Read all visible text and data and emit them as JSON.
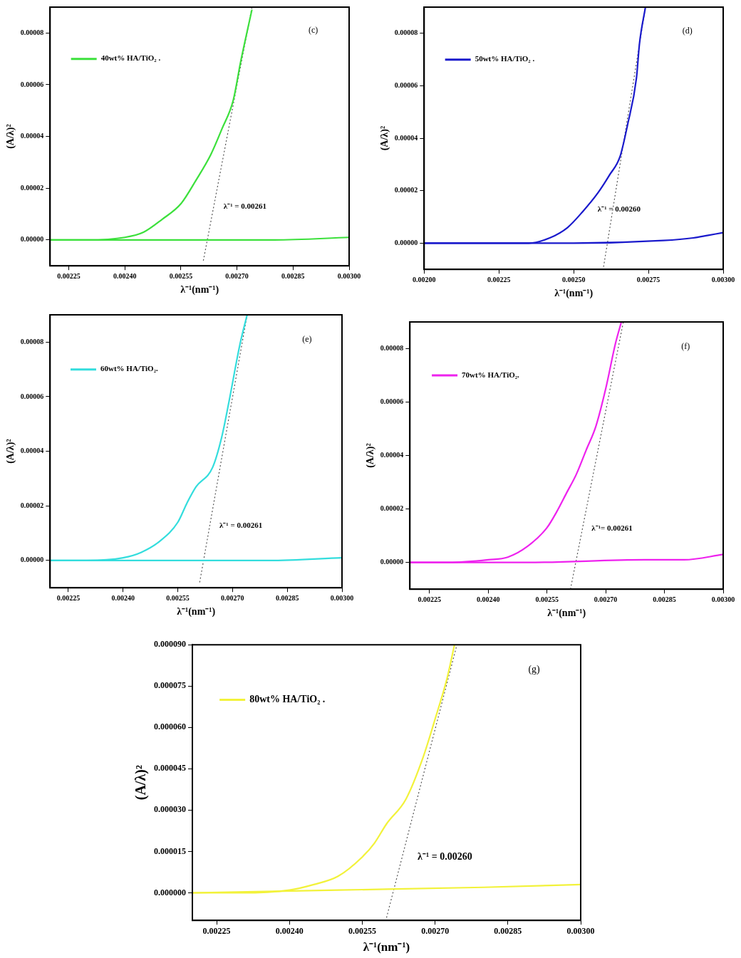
{
  "chart_data": [
    {
      "type": "line",
      "xlabel": "λ⁻¹(nm⁻¹)",
      "ylabel": "(A/λ)²",
      "legend": "top left",
      "grid": false,
      "marker": "none",
      "xlim": [
        0.0022,
        0.003
      ],
      "xticks": [
        {
          "value": 0.00225,
          "label": "0.00225"
        },
        {
          "value": 0.0024,
          "label": "0.00240"
        },
        {
          "value": 0.00255,
          "label": "0.00255"
        },
        {
          "value": 0.0027,
          "label": "0.00270"
        },
        {
          "value": 0.00285,
          "label": "0.00285"
        },
        {
          "value": 0.003,
          "label": "0.00300"
        }
      ],
      "ylim": [
        -1e-05,
        9e-05
      ],
      "yticks": [
        {
          "value": 0,
          "label": "0.00000"
        },
        {
          "value": 2e-05,
          "label": "0.00002"
        },
        {
          "value": 4e-05,
          "label": "0.00004"
        },
        {
          "value": 6e-05,
          "label": "0.00006"
        },
        {
          "value": 8e-05,
          "label": "0.00008"
        }
      ],
      "series": [
        {
          "name": "40wt% HA/TiO₂ .",
          "color": "#3ce03c",
          "x": [
            0.0022,
            0.0023,
            0.0024,
            0.00245,
            0.0025,
            0.00255,
            0.00259,
            0.00263,
            0.00266,
            0.00269,
            0.00271,
            0.00274
          ],
          "values": [
            0,
            0,
            1e-06,
            3e-06,
            8e-06,
            1.4e-05,
            2.3e-05,
            3.3e-05,
            4.3e-05,
            5.4e-05,
            6.9e-05,
            8.9e-05
          ]
        },
        {
          "color": "#3ce03c",
          "x": [
            0.0022,
            0.0025,
            0.0028,
            0.003
          ],
          "values": [
            0,
            0,
            0,
            1e-06
          ]
        },
        {
          "type": "line",
          "color": "#555555",
          "line_style": "dotted",
          "x": [
            0.00261,
            0.00274
          ],
          "values": [
            -8e-06,
            9e-05
          ]
        }
      ],
      "annotations": [
        "(c)",
        "λ⁻¹ = 0.00261"
      ]
    },
    {
      "type": "line",
      "xlabel": "λ⁻¹(nm⁻¹)",
      "ylabel": "(A/λ)²",
      "legend": "top left",
      "grid": false,
      "marker": "none",
      "xlim": [
        0.002,
        0.003
      ],
      "xticks": [
        {
          "value": 0.002,
          "label": "0.00200"
        },
        {
          "value": 0.00225,
          "label": "0.00225"
        },
        {
          "value": 0.0025,
          "label": "0.00250"
        },
        {
          "value": 0.00275,
          "label": "0.00275"
        },
        {
          "value": 0.003,
          "label": "0.00300"
        }
      ],
      "ylim": [
        -1e-05,
        9e-05
      ],
      "yticks": [
        {
          "value": 0,
          "label": "0.00000"
        },
        {
          "value": 2e-05,
          "label": "0.00002"
        },
        {
          "value": 4e-05,
          "label": "0.00004"
        },
        {
          "value": 6e-05,
          "label": "0.00006"
        },
        {
          "value": 8e-05,
          "label": "0.00008"
        }
      ],
      "series": [
        {
          "name": "50wt% HA/TiO₂ .",
          "color": "#1a1acc",
          "x": [
            0.002,
            0.0023,
            0.00235,
            0.00242,
            0.00248,
            0.00253,
            0.00258,
            0.00262,
            0.002655,
            0.00268,
            0.00271,
            0.00272,
            0.00274
          ],
          "values": [
            0,
            0,
            0,
            2e-06,
            6e-06,
            1.2e-05,
            1.9e-05,
            2.6e-05,
            3.3e-05,
            4.5e-05,
            6.3e-05,
            7.6e-05,
            9e-05
          ]
        },
        {
          "color": "#1a1acc",
          "x": [
            0.002,
            0.0025,
            0.0028,
            0.0029,
            0.00295,
            0.003
          ],
          "values": [
            0,
            0,
            1e-06,
            2e-06,
            3e-06,
            4e-06
          ]
        },
        {
          "type": "line",
          "color": "#555555",
          "line_style": "dotted",
          "x": [
            0.0026,
            0.00274
          ],
          "values": [
            -9e-06,
            9e-05
          ]
        }
      ],
      "annotations": [
        "(d)",
        "λ⁻¹ = 0.00260"
      ]
    },
    {
      "type": "line",
      "xlabel": "λ⁻¹(nm⁻¹)",
      "ylabel": "(A/λ)²",
      "legend": "top left",
      "grid": false,
      "marker": "none",
      "xlim": [
        0.0022,
        0.003
      ],
      "xticks": [
        {
          "value": 0.00225,
          "label": "0.00225"
        },
        {
          "value": 0.0024,
          "label": "0.00240"
        },
        {
          "value": 0.00255,
          "label": "0.00255"
        },
        {
          "value": 0.0027,
          "label": "0.00270"
        },
        {
          "value": 0.00285,
          "label": "0.00285"
        },
        {
          "value": 0.003,
          "label": "0.00300"
        }
      ],
      "ylim": [
        -1e-05,
        9e-05
      ],
      "yticks": [
        {
          "value": 0,
          "label": "0.00000"
        },
        {
          "value": 2e-05,
          "label": "0.00002"
        },
        {
          "value": 4e-05,
          "label": "0.00004"
        },
        {
          "value": 6e-05,
          "label": "0.00006"
        },
        {
          "value": 8e-05,
          "label": "0.00008"
        }
      ],
      "series": [
        {
          "name": "60wt% HA/TiO₂.",
          "color": "#33dddd",
          "x": [
            0.0022,
            0.0023,
            0.0024,
            0.00245,
            0.0025,
            0.00255,
            0.002575,
            0.0026,
            0.002645,
            0.00267,
            0.00269,
            0.00272,
            0.00274
          ],
          "values": [
            0,
            0,
            1e-06,
            3e-06,
            7e-06,
            1.4e-05,
            2.1e-05,
            2.7e-05,
            3.4e-05,
            4.5e-05,
            5.8e-05,
            7.9e-05,
            9e-05
          ]
        },
        {
          "color": "#33dddd",
          "x": [
            0.0022,
            0.0025,
            0.0028,
            0.003
          ],
          "values": [
            0,
            0,
            0,
            1e-06
          ]
        },
        {
          "type": "line",
          "color": "#555555",
          "line_style": "dotted",
          "x": [
            0.00261,
            0.00274
          ],
          "values": [
            -8e-06,
            9e-05
          ]
        }
      ],
      "annotations": [
        "(e)",
        "λ⁻¹ = 0.00261"
      ]
    },
    {
      "type": "line",
      "xlabel": "λ⁻¹(nm⁻¹)",
      "ylabel": "(A/λ)²",
      "legend": "top left",
      "grid": false,
      "marker": "none",
      "xlim": [
        0.0022,
        0.003
      ],
      "xticks": [
        {
          "value": 0.00225,
          "label": "0.00225"
        },
        {
          "value": 0.0024,
          "label": "0.00240"
        },
        {
          "value": 0.00255,
          "label": "0.00255"
        },
        {
          "value": 0.0027,
          "label": "0.00270"
        },
        {
          "value": 0.00285,
          "label": "0.00285"
        },
        {
          "value": 0.003,
          "label": "0.00300"
        }
      ],
      "ylim": [
        -1e-05,
        9e-05
      ],
      "yticks": [
        {
          "value": 0,
          "label": "0.00000"
        },
        {
          "value": 2e-05,
          "label": "0.00002"
        },
        {
          "value": 4e-05,
          "label": "0.00004"
        },
        {
          "value": 6e-05,
          "label": "0.00006"
        },
        {
          "value": 8e-05,
          "label": "0.00008"
        }
      ],
      "series": [
        {
          "name": "70wt% HA/TiO₂.",
          "color": "#ee22ee",
          "x": [
            0.0022,
            0.0023,
            0.0024,
            0.00245,
            0.0025,
            0.00255,
            0.002575,
            0.0026,
            0.002625,
            0.00265,
            0.002675,
            0.0027,
            0.002725,
            0.00274
          ],
          "values": [
            0,
            0,
            1e-06,
            2e-06,
            6e-06,
            1.3e-05,
            1.9e-05,
            2.6e-05,
            3.3e-05,
            4.2e-05,
            5.1e-05,
            6.5e-05,
            8.2e-05,
            9e-05
          ]
        },
        {
          "color": "#ee22ee",
          "x": [
            0.0022,
            0.0025,
            0.0028,
            0.0029,
            0.003
          ],
          "values": [
            0,
            0,
            1e-06,
            1e-06,
            3e-06
          ]
        },
        {
          "type": "line",
          "color": "#555555",
          "line_style": "dotted",
          "x": [
            0.00261,
            0.002745
          ],
          "values": [
            -1e-05,
            9e-05
          ]
        }
      ],
      "annotations": [
        "(f)",
        "λ⁻¹= 0.00261"
      ]
    },
    {
      "type": "line",
      "xlabel": "λ⁻¹(nm⁻¹)",
      "ylabel": "(A/λ)²",
      "legend": "top left",
      "grid": false,
      "marker": "none",
      "xlim": [
        0.0022,
        0.003
      ],
      "xticks": [
        {
          "value": 0.00225,
          "label": "0.00225"
        },
        {
          "value": 0.0024,
          "label": "0.00240"
        },
        {
          "value": 0.00255,
          "label": "0.00255"
        },
        {
          "value": 0.0027,
          "label": "0.00270"
        },
        {
          "value": 0.00285,
          "label": "0.00285"
        },
        {
          "value": 0.003,
          "label": "0.00300"
        }
      ],
      "ylim": [
        -1e-05,
        9e-05
      ],
      "yticks": [
        {
          "value": 0,
          "label": "0.000000"
        },
        {
          "value": 1.5e-05,
          "label": "0.000015"
        },
        {
          "value": 3e-05,
          "label": "0.000030"
        },
        {
          "value": 4.5e-05,
          "label": "0.000045"
        },
        {
          "value": 6e-05,
          "label": "0.000060"
        },
        {
          "value": 7.5e-05,
          "label": "0.000075"
        },
        {
          "value": 9e-05,
          "label": "0.000090"
        }
      ],
      "series": [
        {
          "name": "80wt% HA/TiO₂ .",
          "color": "#f2f23a",
          "x": [
            0.0022,
            0.0023,
            0.0024,
            0.00245,
            0.0025,
            0.00255,
            0.002575,
            0.0026,
            0.00264,
            0.002675,
            0.0027,
            0.002725,
            0.00274
          ],
          "values": [
            0,
            0,
            1e-06,
            3e-06,
            6e-06,
            1.3e-05,
            1.8e-05,
            2.5e-05,
            3.4e-05,
            4.9e-05,
            6.3e-05,
            7.8e-05,
            9e-05
          ]
        },
        {
          "color": "#f2f23a",
          "x": [
            0.0022,
            0.0025,
            0.0028,
            0.003
          ],
          "values": [
            0,
            1e-06,
            2e-06,
            3e-06
          ]
        },
        {
          "type": "line",
          "color": "#555555",
          "line_style": "dotted",
          "x": [
            0.0026,
            0.002745
          ],
          "values": [
            -9e-06,
            9e-05
          ]
        }
      ],
      "annotations": [
        "(g)",
        "λ⁻¹ = 0.00260"
      ]
    }
  ]
}
